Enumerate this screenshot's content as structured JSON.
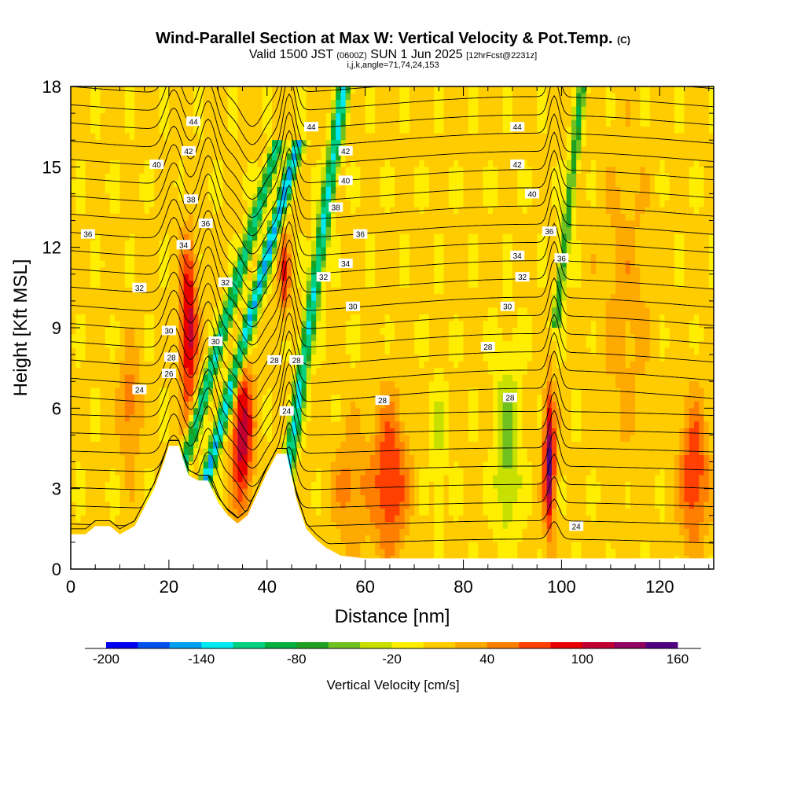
{
  "title": {
    "main": "Wind-Parallel Section at Max W: Vertical Velocity & Pot.Temp.",
    "copyright": "(C)",
    "valid_prefix": "Valid 1500 JST",
    "valid_utc": "(0600Z)",
    "valid_date": "SUN 1 Jun 2025",
    "forecast": "[12hrFcst@2231z]",
    "indices": "i,j,k,angle=71,74,24,153"
  },
  "colorbar": {
    "title": "Vertical Velocity [cm/s]",
    "tick_labels": [
      "-200",
      "-140",
      "-80",
      "-20",
      "40",
      "100",
      "160"
    ],
    "colors": [
      "#0000f0",
      "#0050f0",
      "#00a0f0",
      "#00e8f0",
      "#00d080",
      "#00b040",
      "#20a020",
      "#70c020",
      "#c8e000",
      "#ffee00",
      "#ffcc00",
      "#ffaa00",
      "#ff8000",
      "#ff4000",
      "#e80000",
      "#c00030",
      "#900060",
      "#500080"
    ]
  },
  "chart_data": {
    "type": "heatmap",
    "xlabel": "Distance [nm]",
    "ylabel": "Height [Kft MSL]",
    "xlim": [
      0,
      131
    ],
    "ylim": [
      0,
      18
    ],
    "xticks": [
      0,
      20,
      40,
      60,
      80,
      100,
      120
    ],
    "yticks": [
      0,
      3,
      6,
      9,
      12,
      15,
      18
    ],
    "colorscale_range": [
      -200,
      160
    ],
    "contour_field": "Potential Temperature",
    "contour_labels": [
      {
        "x": 14,
        "y": 6.7,
        "text": "24"
      },
      {
        "x": 20,
        "y": 7.3,
        "text": "26"
      },
      {
        "x": 20.5,
        "y": 7.9,
        "text": "28"
      },
      {
        "x": 20,
        "y": 8.9,
        "text": "30"
      },
      {
        "x": 14,
        "y": 10.5,
        "text": "32"
      },
      {
        "x": 23,
        "y": 12.1,
        "text": "34"
      },
      {
        "x": 3.5,
        "y": 12.5,
        "text": "36"
      },
      {
        "x": 24.5,
        "y": 13.8,
        "text": "38"
      },
      {
        "x": 17.5,
        "y": 15.1,
        "text": "40"
      },
      {
        "x": 24,
        "y": 15.6,
        "text": "42"
      },
      {
        "x": 25,
        "y": 16.7,
        "text": "44"
      },
      {
        "x": 29.5,
        "y": 8.5,
        "text": "30"
      },
      {
        "x": 31.5,
        "y": 10.7,
        "text": "32"
      },
      {
        "x": 27.5,
        "y": 12.9,
        "text": "36"
      },
      {
        "x": 41.5,
        "y": 7.8,
        "text": "28"
      },
      {
        "x": 46,
        "y": 7.8,
        "text": "28"
      },
      {
        "x": 44,
        "y": 5.9,
        "text": "24"
      },
      {
        "x": 51.5,
        "y": 10.9,
        "text": "32"
      },
      {
        "x": 56,
        "y": 11.4,
        "text": "34"
      },
      {
        "x": 54,
        "y": 13.5,
        "text": "38"
      },
      {
        "x": 59,
        "y": 12.5,
        "text": "36"
      },
      {
        "x": 56,
        "y": 14.5,
        "text": "40"
      },
      {
        "x": 56,
        "y": 15.6,
        "text": "42"
      },
      {
        "x": 49,
        "y": 16.5,
        "text": "44"
      },
      {
        "x": 57.5,
        "y": 9.8,
        "text": "30"
      },
      {
        "x": 63.5,
        "y": 6.3,
        "text": "28"
      },
      {
        "x": 85,
        "y": 8.3,
        "text": "28"
      },
      {
        "x": 89,
        "y": 9.8,
        "text": "30"
      },
      {
        "x": 92,
        "y": 10.9,
        "text": "32"
      },
      {
        "x": 91,
        "y": 11.7,
        "text": "34"
      },
      {
        "x": 94,
        "y": 14.0,
        "text": "40"
      },
      {
        "x": 91,
        "y": 15.1,
        "text": "42"
      },
      {
        "x": 91,
        "y": 16.5,
        "text": "44"
      },
      {
        "x": 97.5,
        "y": 12.6,
        "text": "36"
      },
      {
        "x": 100,
        "y": 11.6,
        "text": "36"
      },
      {
        "x": 89.5,
        "y": 6.4,
        "text": "28"
      },
      {
        "x": 103,
        "y": 1.6,
        "text": "24"
      }
    ]
  }
}
